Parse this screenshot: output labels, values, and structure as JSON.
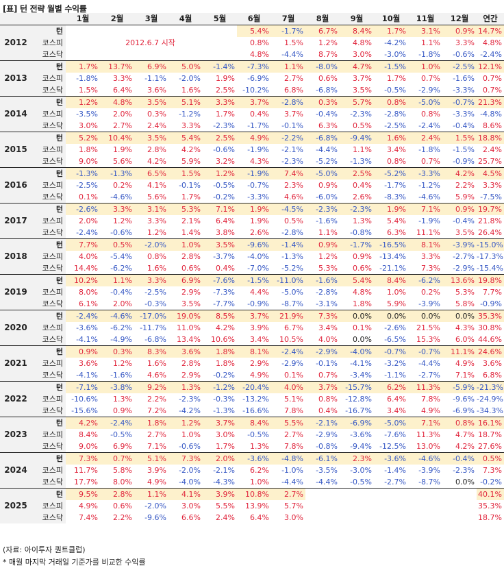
{
  "title": "[표] 턴 전략 월별 수익률",
  "headers": [
    "1월",
    "2월",
    "3월",
    "4월",
    "5월",
    "6월",
    "7월",
    "8월",
    "9월",
    "10월",
    "11월",
    "12월",
    "연간"
  ],
  "row_labels": [
    "턴",
    "코스피",
    "코스닥"
  ],
  "start_note": "2012.6.7 시작",
  "years": [
    {
      "year": "2012",
      "rows": [
        [
          "",
          "",
          "",
          "",
          "",
          "5.4%",
          "-1.7%",
          "6.7%",
          "8.4%",
          "1.7%",
          "3.1%",
          "0.9%",
          "14.7%"
        ],
        [
          "",
          "",
          "",
          "",
          "",
          "0.8%",
          "1.5%",
          "1.2%",
          "4.8%",
          "-4.2%",
          "1.1%",
          "3.3%",
          "4.8%"
        ],
        [
          "",
          "",
          "",
          "",
          "",
          "4.8%",
          "-4.4%",
          "8.7%",
          "3.0%",
          "-3.0%",
          "-1.8%",
          "-0.6%",
          "-2.4%"
        ]
      ]
    },
    {
      "year": "2013",
      "rows": [
        [
          "1.7%",
          "13.7%",
          "6.9%",
          "5.0%",
          "-1.4%",
          "-7.3%",
          "1.1%",
          "-8.0%",
          "4.7%",
          "-1.5%",
          "1.0%",
          "-2.5%",
          "12.1%"
        ],
        [
          "-1.8%",
          "3.3%",
          "-1.1%",
          "-2.0%",
          "1.9%",
          "-6.9%",
          "2.7%",
          "0.6%",
          "3.7%",
          "1.7%",
          "0.7%",
          "-1.6%",
          "0.7%"
        ],
        [
          "1.5%",
          "6.4%",
          "3.6%",
          "1.6%",
          "2.5%",
          "-10.2%",
          "6.8%",
          "-6.8%",
          "3.5%",
          "-0.5%",
          "-2.9%",
          "-3.3%",
          "0.7%"
        ]
      ]
    },
    {
      "year": "2014",
      "rows": [
        [
          "1.2%",
          "4.8%",
          "3.5%",
          "5.1%",
          "3.3%",
          "3.7%",
          "-2.8%",
          "0.3%",
          "5.7%",
          "0.8%",
          "-5.0%",
          "-0.7%",
          "21.3%"
        ],
        [
          "-3.5%",
          "2.0%",
          "0.3%",
          "-1.2%",
          "1.7%",
          "0.4%",
          "3.7%",
          "-0.4%",
          "-2.3%",
          "-2.8%",
          "0.8%",
          "-3.3%",
          "-4.8%"
        ],
        [
          "3.0%",
          "2.7%",
          "2.4%",
          "3.3%",
          "-2.3%",
          "-1.7%",
          "-0.1%",
          "6.3%",
          "0.5%",
          "-2.5%",
          "-2.4%",
          "-0.4%",
          "8.6%"
        ]
      ]
    },
    {
      "year": "2015",
      "rows": [
        [
          "5.2%",
          "10.4%",
          "3.5%",
          "5.4%",
          "2.5%",
          "4.9%",
          "-2.2%",
          "-6.8%",
          "-9.4%",
          "1.6%",
          "2.4%",
          "1.5%",
          "18.8%"
        ],
        [
          "1.8%",
          "1.9%",
          "2.8%",
          "4.2%",
          "-0.6%",
          "-1.9%",
          "-2.1%",
          "-4.4%",
          "1.1%",
          "3.4%",
          "-1.8%",
          "-1.5%",
          "2.4%"
        ],
        [
          "9.0%",
          "5.6%",
          "4.2%",
          "5.9%",
          "3.2%",
          "4.3%",
          "-2.3%",
          "-5.2%",
          "-1.3%",
          "0.8%",
          "0.7%",
          "-0.9%",
          "25.7%"
        ]
      ]
    },
    {
      "year": "2016",
      "rows": [
        [
          "-1.3%",
          "-1.3%",
          "6.5%",
          "1.5%",
          "1.2%",
          "-1.9%",
          "7.4%",
          "-5.0%",
          "2.5%",
          "-5.2%",
          "-3.3%",
          "4.2%",
          "4.5%"
        ],
        [
          "-2.5%",
          "0.2%",
          "4.1%",
          "-0.1%",
          "-0.5%",
          "-0.7%",
          "2.3%",
          "0.9%",
          "0.4%",
          "-1.7%",
          "-1.2%",
          "2.2%",
          "3.3%"
        ],
        [
          "0.1%",
          "-4.6%",
          "5.6%",
          "1.7%",
          "-0.2%",
          "-3.3%",
          "4.6%",
          "-6.0%",
          "2.6%",
          "-8.3%",
          "-4.6%",
          "5.9%",
          "-7.5%"
        ]
      ]
    },
    {
      "year": "2017",
      "rows": [
        [
          "-2.6%",
          "3.3%",
          "3.1%",
          "5.3%",
          "7.1%",
          "1.9%",
          "-4.5%",
          "-2.3%",
          "-2.3%",
          "1.9%",
          "7.1%",
          "0.9%",
          "19.7%"
        ],
        [
          "2.0%",
          "1.2%",
          "3.3%",
          "2.1%",
          "6.4%",
          "1.9%",
          "0.5%",
          "-1.6%",
          "1.3%",
          "5.4%",
          "-1.9%",
          "-0.4%",
          "21.8%"
        ],
        [
          "-2.4%",
          "-0.6%",
          "1.2%",
          "1.4%",
          "3.8%",
          "2.6%",
          "-2.8%",
          "1.1%",
          "-0.8%",
          "6.3%",
          "11.1%",
          "3.5%",
          "26.4%"
        ]
      ]
    },
    {
      "year": "2018",
      "rows": [
        [
          "7.7%",
          "0.5%",
          "-2.0%",
          "1.0%",
          "3.5%",
          "-9.6%",
          "-1.4%",
          "0.9%",
          "-1.7%",
          "-16.5%",
          "8.1%",
          "-3.9%",
          "-15.0%"
        ],
        [
          "4.0%",
          "-5.4%",
          "0.8%",
          "2.8%",
          "-3.7%",
          "-4.0%",
          "-1.3%",
          "1.2%",
          "0.9%",
          "-13.4%",
          "3.3%",
          "-2.7%",
          "-17.3%"
        ],
        [
          "14.4%",
          "-6.2%",
          "1.6%",
          "0.6%",
          "0.4%",
          "-7.0%",
          "-5.2%",
          "5.3%",
          "0.6%",
          "-21.1%",
          "7.3%",
          "-2.9%",
          "-15.4%"
        ]
      ]
    },
    {
      "year": "2019",
      "rows": [
        [
          "10.2%",
          "1.1%",
          "3.3%",
          "6.9%",
          "-7.6%",
          "-1.5%",
          "-11.0%",
          "-1.6%",
          "5.4%",
          "8.4%",
          "-6.2%",
          "13.6%",
          "19.8%"
        ],
        [
          "8.0%",
          "-0.4%",
          "-2.5%",
          "2.9%",
          "-7.3%",
          "4.4%",
          "-5.0%",
          "-2.8%",
          "4.8%",
          "1.0%",
          "0.2%",
          "5.3%",
          "7.7%"
        ],
        [
          "6.1%",
          "2.0%",
          "-0.3%",
          "3.5%",
          "-7.7%",
          "-0.9%",
          "-8.7%",
          "-3.1%",
          "1.8%",
          "5.9%",
          "-3.9%",
          "5.8%",
          "-0.9%"
        ]
      ]
    },
    {
      "year": "2020",
      "rows": [
        [
          "-2.4%",
          "-4.6%",
          "-17.0%",
          "19.0%",
          "8.5%",
          "3.7%",
          "21.9%",
          "7.3%",
          "0.0%",
          "0.0%",
          "0.0%",
          "0.0%",
          "35.3%"
        ],
        [
          "-3.6%",
          "-6.2%",
          "-11.7%",
          "11.0%",
          "4.2%",
          "3.9%",
          "6.7%",
          "3.4%",
          "0.1%",
          "-2.6%",
          "21.5%",
          "4.3%",
          "30.8%"
        ],
        [
          "-4.1%",
          "-4.9%",
          "-6.8%",
          "13.4%",
          "10.6%",
          "3.4%",
          "10.5%",
          "4.0%",
          "0.0%",
          "-6.5%",
          "15.3%",
          "6.0%",
          "44.6%"
        ]
      ]
    },
    {
      "year": "2021",
      "rows": [
        [
          "0.9%",
          "0.3%",
          "8.3%",
          "3.6%",
          "1.8%",
          "8.1%",
          "-2.4%",
          "-2.9%",
          "-4.0%",
          "-0.7%",
          "-0.7%",
          "11.1%",
          "24.6%"
        ],
        [
          "3.6%",
          "1.2%",
          "1.6%",
          "2.8%",
          "1.8%",
          "2.9%",
          "-2.9%",
          "-0.1%",
          "-4.1%",
          "-3.2%",
          "-4.4%",
          "4.9%",
          "3.6%"
        ],
        [
          "-4.1%",
          "-1.6%",
          "4.6%",
          "2.9%",
          "-0.2%",
          "4.9%",
          "0.1%",
          "0.7%",
          "-3.4%",
          "-1.1%",
          "-2.7%",
          "7.1%",
          "6.8%"
        ]
      ]
    },
    {
      "year": "2022",
      "rows": [
        [
          "-7.1%",
          "-3.8%",
          "9.2%",
          "1.3%",
          "-1.2%",
          "-20.4%",
          "4.0%",
          "3.7%",
          "-15.7%",
          "6.2%",
          "11.3%",
          "-5.9%",
          "-21.3%"
        ],
        [
          "-10.6%",
          "1.3%",
          "2.2%",
          "-2.3%",
          "-0.3%",
          "-13.2%",
          "5.1%",
          "0.8%",
          "-12.8%",
          "6.4%",
          "7.8%",
          "-9.6%",
          "-24.9%"
        ],
        [
          "-15.6%",
          "0.9%",
          "7.2%",
          "-4.2%",
          "-1.3%",
          "-16.6%",
          "7.8%",
          "0.4%",
          "-16.7%",
          "3.4%",
          "4.9%",
          "-6.9%",
          "-34.3%"
        ]
      ]
    },
    {
      "year": "2023",
      "rows": [
        [
          "4.2%",
          "-2.4%",
          "1.8%",
          "1.2%",
          "3.7%",
          "8.4%",
          "5.5%",
          "-2.1%",
          "-6.9%",
          "-5.0%",
          "7.1%",
          "0.8%",
          "16.1%"
        ],
        [
          "8.4%",
          "-0.5%",
          "2.7%",
          "1.0%",
          "3.0%",
          "-0.5%",
          "2.7%",
          "-2.9%",
          "-3.6%",
          "-7.6%",
          "11.3%",
          "4.7%",
          "18.7%"
        ],
        [
          "9.0%",
          "6.9%",
          "7.1%",
          "-0.6%",
          "1.7%",
          "1.3%",
          "7.8%",
          "-0.8%",
          "-9.4%",
          "-12.5%",
          "13.0%",
          "4.2%",
          "27.6%"
        ]
      ]
    },
    {
      "year": "2024",
      "rows": [
        [
          "7.3%",
          "0.7%",
          "5.1%",
          "7.3%",
          "2.0%",
          "-3.6%",
          "-4.8%",
          "-6.1%",
          "2.3%",
          "-3.6%",
          "-4.6%",
          "-0.4%",
          "0.5%"
        ],
        [
          "11.7%",
          "5.8%",
          "3.9%",
          "-2.0%",
          "-2.1%",
          "6.2%",
          "-1.0%",
          "-3.5%",
          "-3.0%",
          "-1.4%",
          "-3.9%",
          "-2.3%",
          "7.3%"
        ],
        [
          "17.7%",
          "8.0%",
          "4.9%",
          "-4.0%",
          "-4.3%",
          "1.0%",
          "-4.4%",
          "-4.4%",
          "-0.5%",
          "-2.7%",
          "-8.7%",
          "0.0%",
          "-0.2%"
        ]
      ]
    },
    {
      "year": "2025",
      "rows": [
        [
          "9.5%",
          "2.8%",
          "1.1%",
          "4.1%",
          "3.9%",
          "10.8%",
          "2.7%",
          "",
          "",
          "",
          "",
          "",
          "40.1%"
        ],
        [
          "4.9%",
          "0.6%",
          "-2.0%",
          "3.0%",
          "5.5%",
          "13.9%",
          "5.7%",
          "",
          "",
          "",
          "",
          "",
          "35.3%"
        ],
        [
          "7.4%",
          "2.2%",
          "-9.6%",
          "6.6%",
          "2.4%",
          "6.4%",
          "3.0%",
          "",
          "",
          "",
          "",
          "",
          "18.7%"
        ]
      ]
    }
  ],
  "footnote_source": "(자료: 아이투자 퀀트클럽)",
  "footnote_note": "* 매월 마지막 거래일 기준가를 비교한 수익률"
}
